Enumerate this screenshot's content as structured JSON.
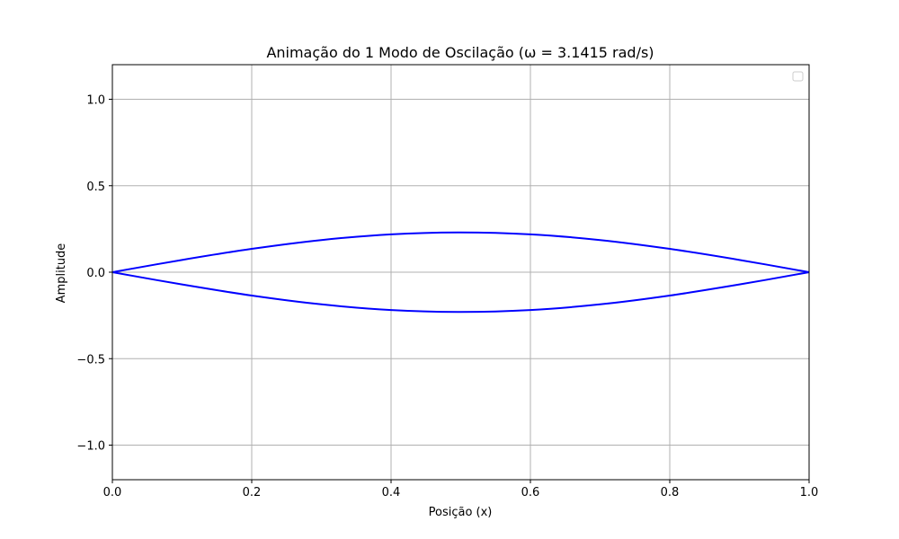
{
  "chart_data": {
    "type": "line",
    "title": "Animação do 1 Modo de Oscilação (ω = 3.1415 rad/s)",
    "xlabel": "Posição (x)",
    "ylabel": "Amplitude",
    "xlim": [
      0.0,
      1.0
    ],
    "ylim": [
      -1.2,
      1.2
    ],
    "xticks": [
      0.0,
      0.2,
      0.4,
      0.6,
      0.8,
      1.0
    ],
    "xtick_labels": [
      "0.0",
      "0.2",
      "0.4",
      "0.6",
      "0.8",
      "1.0"
    ],
    "yticks": [
      -1.0,
      -0.5,
      0.0,
      0.5,
      1.0
    ],
    "ytick_labels": [
      "−1.0",
      "−0.5",
      "0.0",
      "0.5",
      "1.0"
    ],
    "grid": true,
    "legend": {
      "placement": "top-right",
      "entries": []
    },
    "series": [
      {
        "color": "#0000ff",
        "x": [
          0.0,
          0.1,
          0.2,
          0.3,
          0.4,
          0.5,
          0.6,
          0.7,
          0.8,
          0.9,
          1.0
        ],
        "y": [
          0.0,
          0.071,
          0.135,
          0.186,
          0.219,
          0.23,
          0.219,
          0.186,
          0.135,
          0.071,
          0.0
        ]
      },
      {
        "color": "#0000ff",
        "x": [
          0.0,
          0.1,
          0.2,
          0.3,
          0.4,
          0.5,
          0.6,
          0.7,
          0.8,
          0.9,
          1.0
        ],
        "y": [
          0.0,
          -0.071,
          -0.135,
          -0.186,
          -0.219,
          -0.23,
          -0.219,
          -0.186,
          -0.135,
          -0.071,
          0.0
        ]
      }
    ]
  }
}
